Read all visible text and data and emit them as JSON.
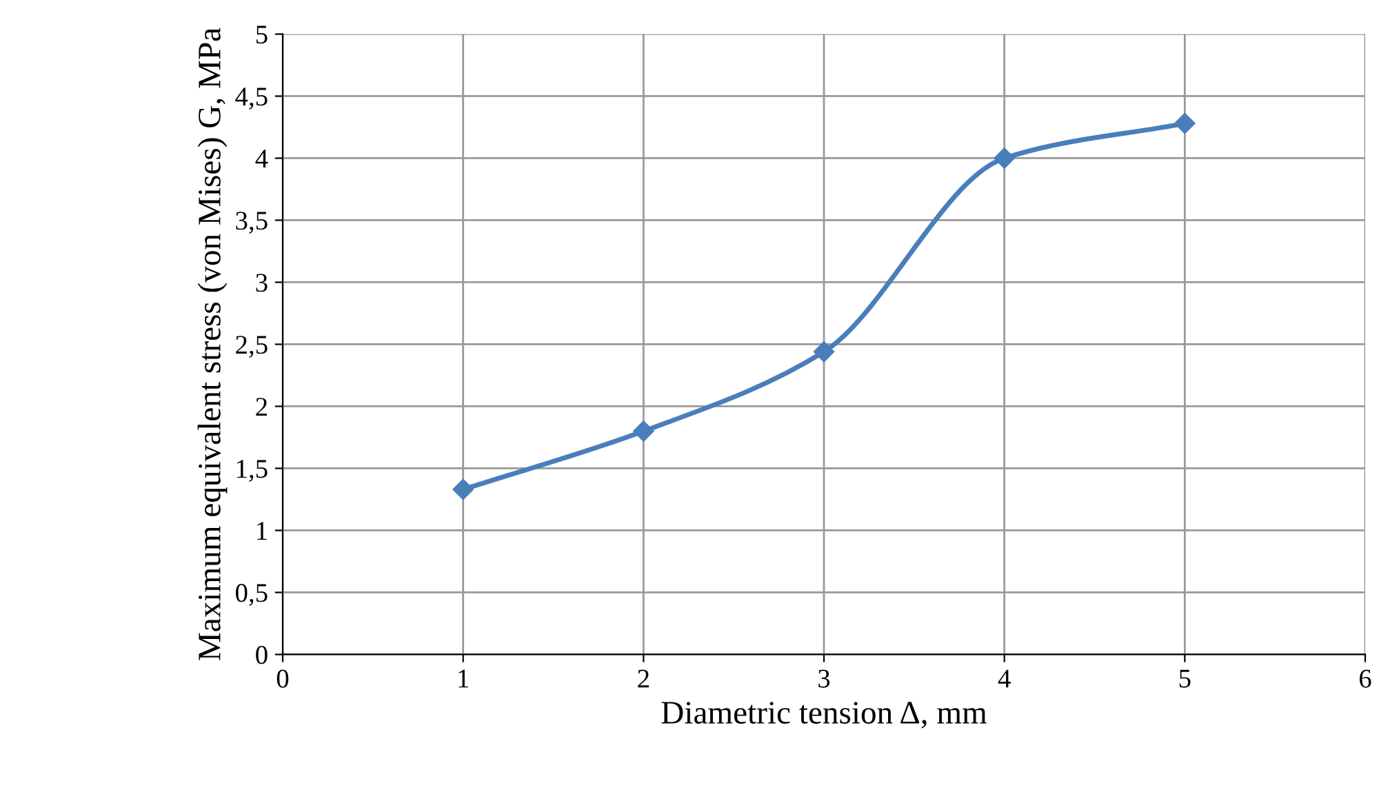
{
  "chart_data": {
    "type": "line",
    "xlabel": "Diametric tension Δ, mm",
    "ylabel": "Maximum equivalent stress (von Mises) G, MPa",
    "x": [
      1,
      2,
      3,
      4,
      5
    ],
    "series": [
      {
        "color": "#4a7ebb",
        "values": [
          1.33,
          1.8,
          2.44,
          4.0,
          4.28
        ]
      }
    ],
    "xlim": [
      0,
      6
    ],
    "xticks": [
      0,
      1,
      2,
      3,
      4,
      5,
      6
    ],
    "ylim": [
      0,
      5
    ],
    "yticks": [
      0,
      {
        "value": 0.5,
        "label": "0,5"
      },
      1,
      {
        "value": 1.5,
        "label": "1,5"
      },
      2,
      {
        "value": 2.5,
        "label": "2,5"
      },
      3,
      {
        "value": 3.5,
        "label": "3,5"
      },
      4,
      {
        "value": 4.5,
        "label": "4,5"
      },
      5
    ],
    "grid": true,
    "marker": "diamond",
    "line_style": "solid",
    "legend": false
  }
}
